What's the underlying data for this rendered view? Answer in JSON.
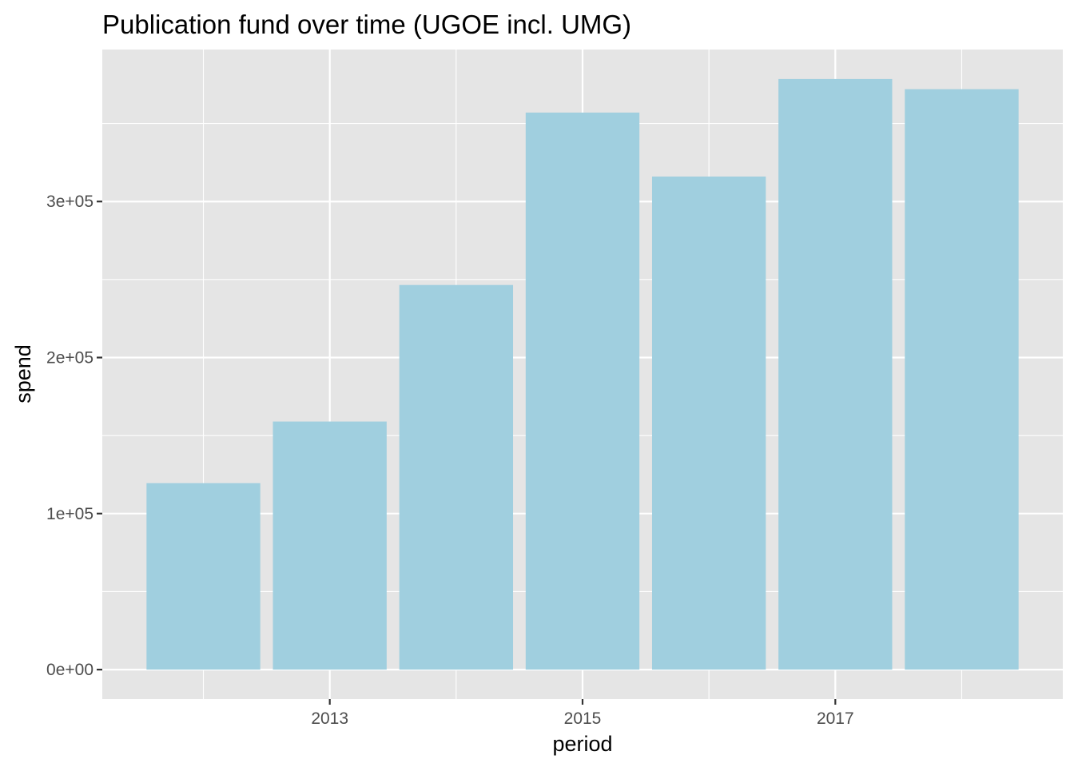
{
  "chart_data": {
    "type": "bar",
    "title": "Publication fund over time (UGOE incl. UMG)",
    "xlabel": "period",
    "ylabel": "spend",
    "categories": [
      2012,
      2013,
      2014,
      2015,
      2016,
      2017,
      2018
    ],
    "values": [
      119500,
      159000,
      246500,
      357000,
      316000,
      378500,
      372000
    ],
    "x_ticks": [
      2013,
      2015,
      2017
    ],
    "x_tick_labels": [
      "2013",
      "2015",
      "2017"
    ],
    "y_ticks": [
      0,
      100000,
      200000,
      300000
    ],
    "y_tick_labels": [
      "0e+00",
      "1e+05",
      "2e+05",
      "3e+05"
    ],
    "xlim": [
      2011.2,
      2018.8
    ],
    "ylim": [
      -18900,
      397400
    ],
    "grid": true,
    "colors": {
      "bar_fill": "#a0cfdf",
      "panel_background": "#e5e5e5",
      "grid_line": "#ffffff"
    }
  }
}
